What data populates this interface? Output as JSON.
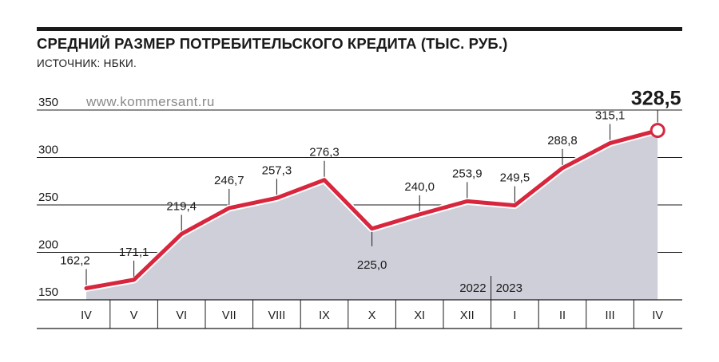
{
  "title": "СРЕДНИЙ РАЗМЕР ПОТРЕБИТЕЛЬСКОГО КРЕДИТА (ТЫС. РУБ.)",
  "source": "ИСТОЧНИК: НБКИ.",
  "watermark": "www.kommersant.ru",
  "colors": {
    "line": "#d7263d",
    "area": "#cfcfda",
    "text": "#1a1a1a"
  },
  "chart_data": {
    "type": "area",
    "categories": [
      "IV",
      "V",
      "VI",
      "VII",
      "VIII",
      "IX",
      "X",
      "XI",
      "XII",
      "I",
      "II",
      "III",
      "IV"
    ],
    "series": [
      {
        "values": [
          162.2,
          171.1,
          219.4,
          246.7,
          257.3,
          276.3,
          225.0,
          240.0,
          253.9,
          249.5,
          288.8,
          315.1,
          328.5
        ]
      }
    ],
    "value_labels": [
      "162,2",
      "171,1",
      "219,4",
      "246,7",
      "257,3",
      "276,3",
      "225,0",
      "240,0",
      "253,9",
      "249,5",
      "288,8",
      "315,1",
      "328,5"
    ],
    "label_positions": [
      "above",
      "above",
      "above",
      "above",
      "above",
      "above",
      "below",
      "above",
      "above",
      "above",
      "above",
      "above",
      "above"
    ],
    "highlight_last": true,
    "yticks": [
      150,
      200,
      250,
      300,
      350
    ],
    "ytick_labels": [
      "150",
      "200",
      "250",
      "300",
      "350"
    ],
    "ylim": [
      150,
      350
    ],
    "year_labels": [
      {
        "label": "2022",
        "category_index": 8
      },
      {
        "label": "2023",
        "category_index": 9
      }
    ],
    "year_divider_between": [
      8,
      9
    ],
    "grid": "horizontal"
  }
}
